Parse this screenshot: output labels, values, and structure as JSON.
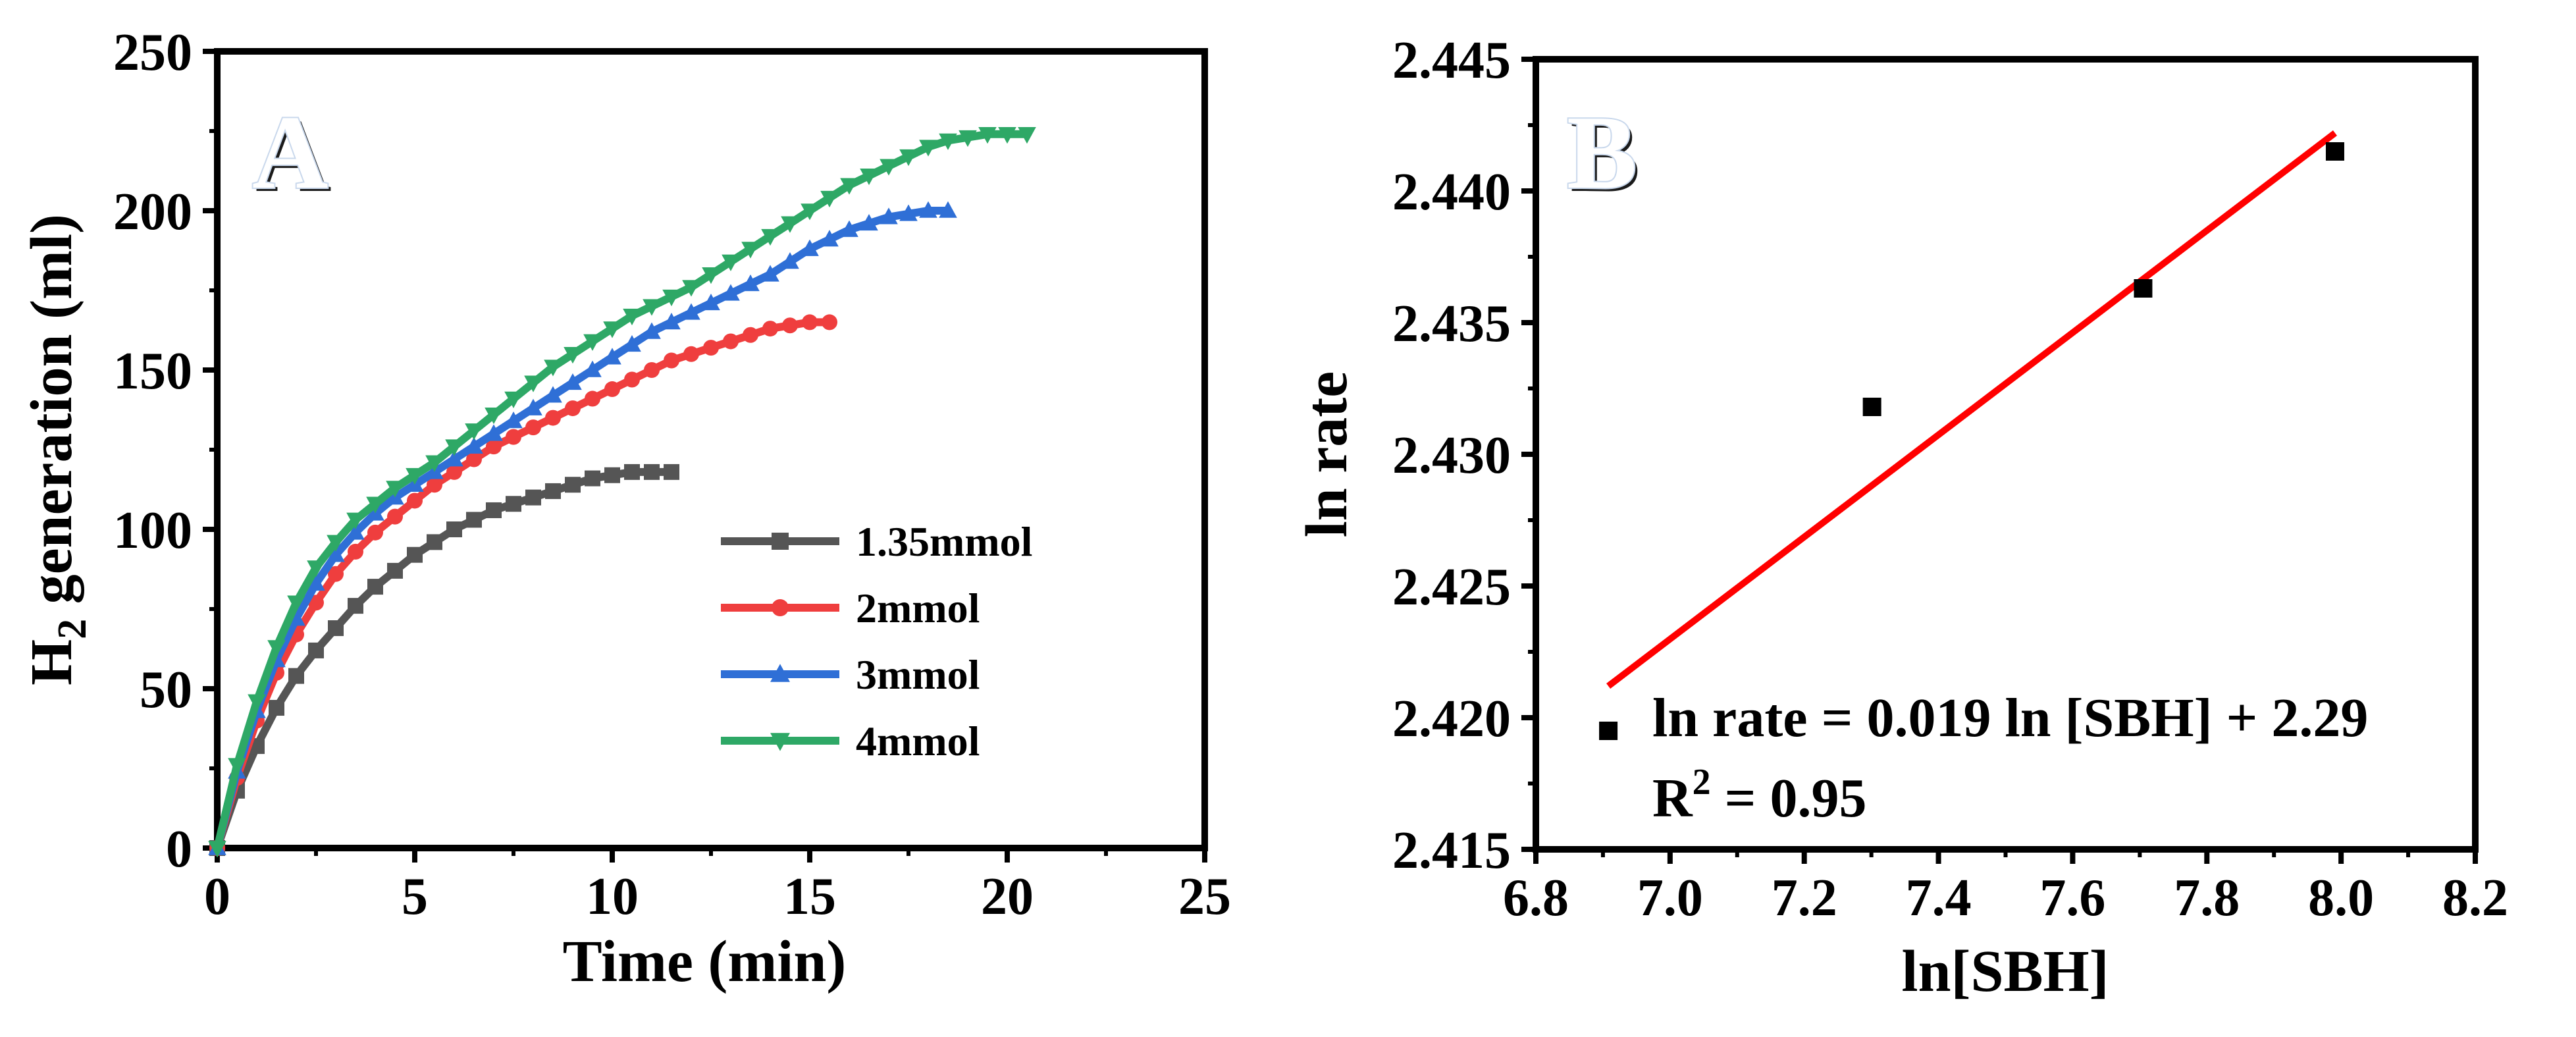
{
  "chart_data": [
    {
      "type": "line",
      "panel": "A",
      "xlabel": "Time (min)",
      "ylabel_main": "H",
      "ylabel_sub": "2",
      "ylabel_rest": " generation (ml)",
      "xlim": [
        0,
        25
      ],
      "ylim": [
        0,
        250
      ],
      "xticks": [
        "0",
        "5",
        "10",
        "15",
        "20",
        "25"
      ],
      "yticks": [
        "0",
        "50",
        "100",
        "150",
        "200",
        "250"
      ],
      "legend_position": "center-right",
      "series": [
        {
          "name": "1.35mmol",
          "color": "#555555",
          "marker": "square",
          "x": [
            0,
            0.5,
            1,
            1.5,
            2,
            2.5,
            3,
            3.5,
            4,
            4.5,
            5,
            5.5,
            6,
            6.5,
            7,
            7.5,
            8,
            8.5,
            9,
            9.5,
            10,
            10.5,
            11,
            11.5
          ],
          "y": [
            0,
            18,
            32,
            44,
            54,
            62,
            69,
            76,
            82,
            87,
            92,
            96,
            100,
            103,
            106,
            108,
            110,
            112,
            114,
            116,
            117,
            118,
            118,
            118
          ]
        },
        {
          "name": "2mmol",
          "color": "#ef3e3e",
          "marker": "circle",
          "x": [
            0,
            0.5,
            1,
            1.5,
            2,
            2.5,
            3,
            3.5,
            4,
            4.5,
            5,
            5.5,
            6,
            6.5,
            7,
            7.5,
            8,
            8.5,
            9,
            9.5,
            10,
            10.5,
            11,
            11.5,
            12,
            12.5,
            13,
            13.5,
            14,
            14.5,
            15,
            15.5
          ],
          "y": [
            0,
            22,
            40,
            55,
            67,
            77,
            86,
            93,
            99,
            104,
            109,
            114,
            118,
            122,
            126,
            129,
            132,
            135,
            138,
            141,
            144,
            147,
            150,
            153,
            155,
            157,
            159,
            161,
            163,
            164,
            165,
            165
          ]
        },
        {
          "name": "3mmol",
          "color": "#2f6fd6",
          "marker": "triangle-up",
          "x": [
            0,
            0.5,
            1,
            1.5,
            2,
            2.5,
            3,
            3.5,
            4,
            4.5,
            5,
            5.5,
            6,
            6.5,
            7,
            7.5,
            8,
            8.5,
            9,
            9.5,
            10,
            10.5,
            11,
            11.5,
            12,
            12.5,
            13,
            13.5,
            14,
            14.5,
            15,
            15.5,
            16,
            16.5,
            17,
            17.5,
            18,
            18.5
          ],
          "y": [
            0,
            24,
            43,
            59,
            72,
            83,
            92,
            99,
            105,
            110,
            114,
            118,
            122,
            126,
            130,
            134,
            138,
            142,
            146,
            150,
            154,
            158,
            162,
            165,
            168,
            171,
            174,
            177,
            180,
            184,
            188,
            191,
            194,
            196,
            198,
            199,
            200,
            200
          ]
        },
        {
          "name": "4mmol",
          "color": "#2ea866",
          "marker": "triangle-down",
          "x": [
            0,
            0.5,
            1,
            1.5,
            2,
            2.5,
            3,
            3.5,
            4,
            4.5,
            5,
            5.5,
            6,
            6.5,
            7,
            7.5,
            8,
            8.5,
            9,
            9.5,
            10,
            10.5,
            11,
            11.5,
            12,
            12.5,
            13,
            13.5,
            14,
            14.5,
            15,
            15.5,
            16,
            16.5,
            17,
            17.5,
            18,
            18.5,
            19,
            19.5,
            20,
            20.5
          ],
          "y": [
            0,
            26,
            46,
            63,
            77,
            88,
            96,
            103,
            108,
            113,
            117,
            121,
            126,
            131,
            136,
            141,
            146,
            151,
            155,
            159,
            163,
            167,
            170,
            173,
            176,
            180,
            184,
            188,
            192,
            196,
            200,
            204,
            208,
            211,
            214,
            217,
            220,
            222,
            223,
            224,
            224,
            224
          ]
        }
      ]
    },
    {
      "type": "scatter",
      "panel": "B",
      "xlabel": "ln[SBH]",
      "ylabel": "ln rate",
      "xlim": [
        6.8,
        8.2
      ],
      "ylim": [
        2.415,
        2.445
      ],
      "xticks": [
        "6.8",
        "7.0",
        "7.2",
        "7.4",
        "7.6",
        "7.8",
        "8.0",
        "8.2"
      ],
      "yticks": [
        "2.415",
        "2.420",
        "2.425",
        "2.430",
        "2.435",
        "2.440",
        "2.445"
      ],
      "points": {
        "x": [
          6.908,
          7.301,
          7.705,
          7.991
        ],
        "y": [
          2.4195,
          2.4318,
          2.4363,
          2.4415
        ],
        "color": "#000000"
      },
      "fit_line": {
        "x": [
          6.908,
          7.991
        ],
        "y": [
          2.4212,
          2.4422
        ],
        "color": "#ff0000"
      },
      "equation": "ln rate = 0.019 ln [SBH] + 2.29",
      "r2_label": "R",
      "r2_sup": "2",
      "r2_value": " = 0.95"
    }
  ]
}
